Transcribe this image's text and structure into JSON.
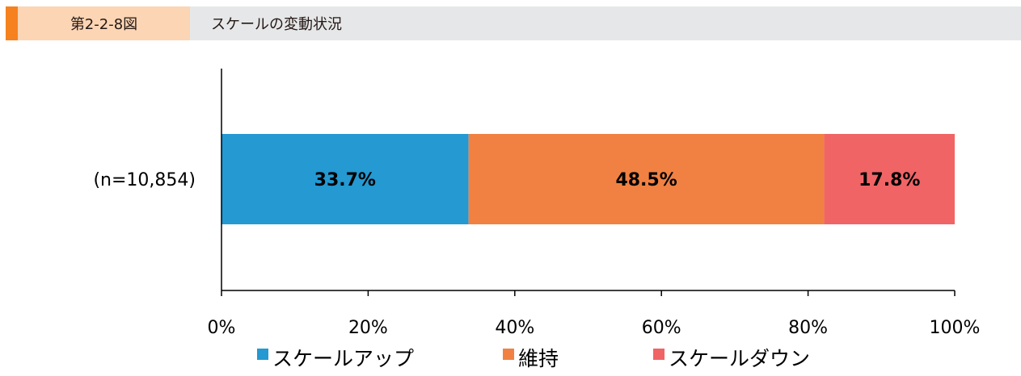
{
  "header": {
    "figure_number": "第2-2-8図",
    "title": "スケールの変動状況"
  },
  "chart_data": {
    "type": "bar",
    "orientation": "horizontal-stacked-100",
    "title": "スケールの変動状況",
    "categories": [
      "(n=10,854)"
    ],
    "series": [
      {
        "name": "スケールアップ",
        "values": [
          33.7
        ],
        "label": "33.7%",
        "color": "#2499d2"
      },
      {
        "name": "維持",
        "values": [
          48.5
        ],
        "label": "48.5%",
        "color": "#f18142"
      },
      {
        "name": "スケールダウン",
        "values": [
          17.8
        ],
        "label": "17.8%",
        "color": "#f06466"
      }
    ],
    "xlim": [
      0,
      100
    ],
    "xticks": [
      "0%",
      "20%",
      "40%",
      "60%",
      "80%",
      "100%"
    ],
    "legend": "bottom",
    "grid": false
  }
}
